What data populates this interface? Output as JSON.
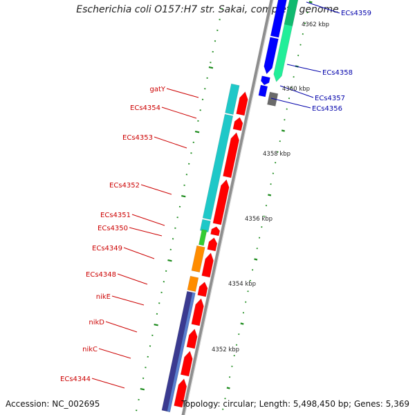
{
  "title": "Escherichia coli O157:H7 str. Sakai, complete genome",
  "accession": "Accession: NC_002695",
  "stats": "Topology: circular; Length: 5,498,450 bp; Genes: 5,369",
  "colors": {
    "forward_gene": "#ff0000",
    "reverse_gene": "#0000ff",
    "reverse_label": "#0000aa",
    "forward_label": "#cc0000",
    "backbone": "#909090",
    "tick": "#1a8a1a",
    "cyan": "#1fc8c8",
    "green_light": "#22ee99",
    "orange": "#ff8c00",
    "blue_dark": "#3a3a90",
    "grey_box": "#6a6a6a"
  },
  "kbp_labels": [
    "4362 kbp",
    "4360 kbp",
    "4358 kbp",
    "4356 kbp",
    "4354 kbp",
    "4352 kbp"
  ],
  "forward_labels": [
    "gatY",
    "ECs4354",
    "ECs4353",
    "ECs4352",
    "ECs4351",
    "ECs4350",
    "ECs4349",
    "ECs4348",
    "nikE",
    "nikD",
    "nikC",
    "ECs4344"
  ],
  "reverse_labels": [
    "ECs4359",
    "ECs4358",
    "ECs4357",
    "ECs4356"
  ]
}
